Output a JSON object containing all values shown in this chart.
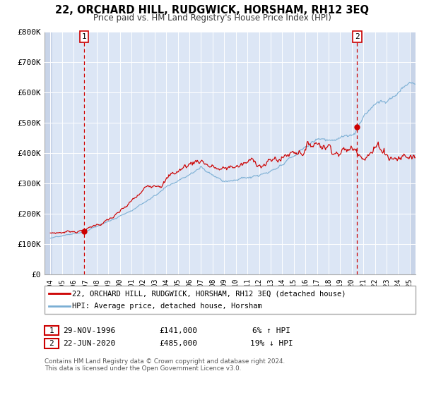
{
  "title": "22, ORCHARD HILL, RUDGWICK, HORSHAM, RH12 3EQ",
  "subtitle": "Price paid vs. HM Land Registry's House Price Index (HPI)",
  "legend_line1": "22, ORCHARD HILL, RUDGWICK, HORSHAM, RH12 3EQ (detached house)",
  "legend_line2": "HPI: Average price, detached house, Horsham",
  "annotation1_date": "29-NOV-1996",
  "annotation1_price": "£141,000",
  "annotation1_hpi": "6% ↑ HPI",
  "annotation1_year": 1996.92,
  "annotation1_value": 141000,
  "annotation2_date": "22-JUN-2020",
  "annotation2_price": "£485,000",
  "annotation2_hpi": "19% ↓ HPI",
  "annotation2_year": 2020.47,
  "annotation2_value": 485000,
  "red_line_color": "#cc0000",
  "blue_line_color": "#7bafd4",
  "dot_color": "#cc0000",
  "dashed_line_color": "#cc0000",
  "background_color": "#dce6f5",
  "hatch_color": "#c8d4e8",
  "grid_color": "#ffffff",
  "xlim": [
    1993.5,
    2025.5
  ],
  "ylim": [
    0,
    800000
  ],
  "yticks": [
    0,
    100000,
    200000,
    300000,
    400000,
    500000,
    600000,
    700000,
    800000
  ],
  "ytick_labels": [
    "£0",
    "£100K",
    "£200K",
    "£300K",
    "£400K",
    "£500K",
    "£600K",
    "£700K",
    "£800K"
  ],
  "xticks": [
    1994,
    1995,
    1996,
    1997,
    1998,
    1999,
    2000,
    2001,
    2002,
    2003,
    2004,
    2005,
    2006,
    2007,
    2008,
    2009,
    2010,
    2011,
    2012,
    2013,
    2014,
    2015,
    2016,
    2017,
    2018,
    2019,
    2020,
    2021,
    2022,
    2023,
    2024,
    2025
  ],
  "footnote_line1": "Contains HM Land Registry data © Crown copyright and database right 2024.",
  "footnote_line2": "This data is licensed under the Open Government Licence v3.0."
}
